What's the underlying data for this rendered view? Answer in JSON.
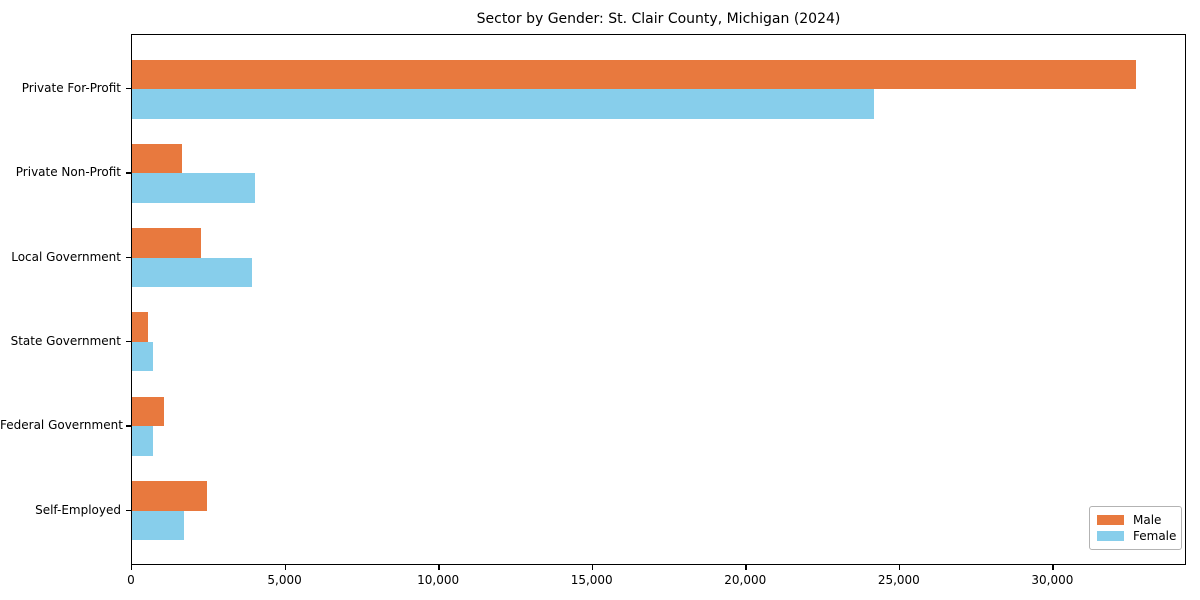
{
  "figure": {
    "background": "#ffffff"
  },
  "chart_data": {
    "type": "bar",
    "orientation": "horizontal",
    "title": "Sector by Gender: St. Clair County, Michigan (2024)",
    "categories": [
      "Private For-Profit",
      "Private Non-Profit",
      "Local Government",
      "State Government",
      "Federal Government",
      "Self-Employed"
    ],
    "series": [
      {
        "name": "Male",
        "color": "#e8793e",
        "values": [
          32700,
          1620,
          2250,
          510,
          1030,
          2450
        ]
      },
      {
        "name": "Female",
        "color": "#87ceeb",
        "values": [
          24150,
          3990,
          3900,
          670,
          700,
          1680
        ]
      }
    ],
    "xlabel": "",
    "ylabel": "",
    "xlim": [
      0,
      34350
    ],
    "xticks": [
      0,
      5000,
      10000,
      15000,
      20000,
      25000,
      30000
    ],
    "grid": false,
    "legend": {
      "position": "lower-right",
      "entries": [
        "Male",
        "Female"
      ]
    }
  }
}
